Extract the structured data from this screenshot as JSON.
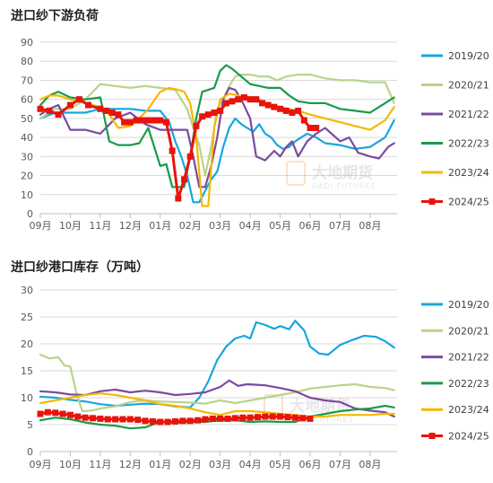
{
  "chart_data": [
    {
      "type": "line",
      "title": "进口纱下游负荷",
      "xlabel": "",
      "ylabel": "",
      "ylim": [
        0,
        90
      ],
      "yticks": [
        0,
        10,
        20,
        30,
        40,
        50,
        60,
        70,
        80,
        90
      ],
      "x_categories": [
        "09月",
        "10月",
        "11月",
        "12月",
        "01月",
        "02月",
        "03月",
        "04月",
        "05月",
        "06月",
        "07月",
        "08月"
      ],
      "xlim": [
        0,
        11.9
      ],
      "grid": "horizontal",
      "legend_position": "right",
      "series": [
        {
          "name": "2019/20",
          "color": "#17a6de",
          "marker": "none",
          "x": [
            0,
            0.5,
            1,
            1.5,
            2,
            2.5,
            3,
            3.5,
            4,
            4.3,
            4.5,
            4.7,
            4.9,
            5.1,
            5.3,
            5.5,
            5.7,
            5.9,
            6.1,
            6.3,
            6.5,
            6.7,
            6.9,
            7.1,
            7.3,
            7.5,
            7.7,
            7.9,
            8.1,
            8.3,
            8.5,
            8.7,
            8.9,
            9.2,
            9.5,
            10,
            10.5,
            11,
            11.5,
            11.8
          ],
          "y": [
            50,
            53,
            53,
            53,
            55,
            55,
            55,
            54,
            54,
            48,
            38,
            30,
            20,
            6,
            6,
            12,
            18,
            22,
            35,
            45,
            50,
            47,
            45,
            43,
            47,
            42,
            40,
            36,
            34,
            35,
            38,
            40,
            42,
            40,
            37,
            36,
            34,
            35,
            40,
            49
          ]
        },
        {
          "name": "2020/21",
          "color": "#b8d48a",
          "marker": "none",
          "x": [
            0,
            0.5,
            1,
            1.5,
            2,
            2.5,
            3,
            3.5,
            4,
            4.5,
            4.7,
            4.9,
            5.1,
            5.3,
            5.5,
            5.7,
            5.9,
            6.1,
            6.3,
            6.5,
            6.7,
            7,
            7.3,
            7.6,
            7.9,
            8.2,
            8.6,
            9,
            9.5,
            10,
            10.5,
            11,
            11.5,
            11.8
          ],
          "y": [
            50,
            55,
            55,
            60,
            68,
            67,
            66,
            67,
            66,
            65,
            60,
            55,
            45,
            36,
            20,
            35,
            55,
            60,
            67,
            72,
            73,
            73,
            72,
            72,
            70,
            72,
            73,
            73,
            71,
            70,
            70,
            69,
            69,
            58
          ]
        },
        {
          "name": "2021/22",
          "color": "#7b4aa0",
          "marker": "none",
          "x": [
            0,
            0.3,
            0.6,
            1,
            1.5,
            2,
            2.5,
            3,
            3.5,
            4,
            4.3,
            4.5,
            4.7,
            4.9,
            5.1,
            5.3,
            5.5,
            5.7,
            5.9,
            6.1,
            6.3,
            6.5,
            6.7,
            7,
            7.2,
            7.5,
            7.8,
            8,
            8.2,
            8.4,
            8.6,
            8.9,
            9.2,
            9.5,
            10,
            10.3,
            10.6,
            11,
            11.3,
            11.6,
            11.8
          ],
          "y": [
            52,
            55,
            57,
            44,
            44,
            42,
            50,
            53,
            47,
            44,
            44,
            44,
            44,
            44,
            30,
            14,
            14,
            25,
            40,
            60,
            66,
            65,
            60,
            50,
            30,
            28,
            33,
            30,
            35,
            38,
            30,
            38,
            42,
            45,
            38,
            40,
            32,
            30,
            29,
            35,
            37
          ]
        },
        {
          "name": "2022/23",
          "color": "#1a9a4a",
          "marker": "none",
          "x": [
            0,
            0.3,
            0.6,
            1,
            1.5,
            2,
            2.3,
            2.6,
            3,
            3.3,
            3.6,
            4,
            4.2,
            4.4,
            4.6,
            4.8,
            5,
            5.2,
            5.4,
            5.6,
            5.8,
            6,
            6.2,
            6.4,
            6.7,
            7,
            7.3,
            7.6,
            8,
            8.3,
            8.6,
            9,
            9.5,
            10,
            10.5,
            11,
            11.5,
            11.8
          ],
          "y": [
            57,
            62,
            64,
            61,
            60,
            61,
            38,
            36,
            36,
            37,
            45,
            25,
            26,
            14,
            14,
            14,
            30,
            50,
            64,
            65,
            66,
            75,
            78,
            76,
            72,
            68,
            67,
            66,
            66,
            62,
            59,
            58,
            58,
            55,
            54,
            53,
            58,
            61
          ]
        },
        {
          "name": "2023/24",
          "color": "#f5b800",
          "marker": "none",
          "x": [
            0,
            0.3,
            0.6,
            1,
            1.5,
            2,
            2.3,
            2.6,
            3,
            3.3,
            3.6,
            4,
            4.3,
            4.6,
            4.8,
            5,
            5.2,
            5.4,
            5.6,
            5.8,
            6,
            6.3,
            6.6,
            7,
            7.3,
            7.6,
            8,
            8.3,
            8.6,
            9,
            9.5,
            10,
            10.5,
            11,
            11.5,
            11.8
          ],
          "y": [
            60,
            62,
            62,
            60,
            58,
            56,
            52,
            45,
            46,
            50,
            55,
            64,
            66,
            65,
            64,
            58,
            40,
            4,
            4,
            45,
            60,
            63,
            62,
            61,
            60,
            57,
            56,
            55,
            54,
            52,
            50,
            48,
            46,
            44,
            49,
            56
          ]
        },
        {
          "name": "2024/25",
          "color": "#e8140c",
          "marker": "square",
          "x": [
            0,
            0.3,
            0.6,
            1,
            1.3,
            1.6,
            2,
            2.2,
            2.4,
            2.6,
            2.8,
            3,
            3.2,
            3.4,
            3.6,
            3.8,
            4,
            4.2,
            4.4,
            4.6,
            4.8,
            5,
            5.2,
            5.4,
            5.6,
            5.8,
            6,
            6.2,
            6.4,
            6.6,
            6.8,
            7,
            7.2,
            7.4,
            7.6,
            7.8,
            8,
            8.2,
            8.4,
            8.6,
            8.8,
            9,
            9.2
          ],
          "y": [
            55,
            54,
            52,
            57,
            60,
            57,
            55,
            54,
            53,
            52,
            48,
            48,
            49,
            49,
            49,
            49,
            49,
            48,
            33,
            8,
            18,
            30,
            46,
            51,
            52,
            53,
            54,
            58,
            59,
            60,
            61,
            60,
            60,
            58,
            57,
            56,
            55,
            54,
            53,
            54,
            49,
            45,
            45
          ]
        }
      ]
    },
    {
      "type": "line",
      "title": "进口纱港口库存（万吨）",
      "xlabel": "",
      "ylabel": "",
      "ylim": [
        0,
        30
      ],
      "yticks": [
        0,
        5,
        10,
        15,
        20,
        25,
        30
      ],
      "x_categories": [
        "09月",
        "10月",
        "11月",
        "12月",
        "01月",
        "02月",
        "03月",
        "04月",
        "05月",
        "06月",
        "07月",
        "08月"
      ],
      "xlim": [
        0,
        11.9
      ],
      "grid": "horizontal",
      "legend_position": "right",
      "series": [
        {
          "name": "2019/20",
          "color": "#17a6de",
          "marker": "none",
          "x": [
            0,
            0.5,
            1,
            1.5,
            2,
            2.5,
            3,
            3.5,
            4,
            4.5,
            5,
            5.3,
            5.6,
            5.9,
            6.2,
            6.5,
            6.8,
            7,
            7.2,
            7.5,
            7.8,
            8,
            8.3,
            8.5,
            8.8,
            9,
            9.3,
            9.6,
            10,
            10.4,
            10.8,
            11.2,
            11.5,
            11.8
          ],
          "y": [
            10.2,
            10,
            9.6,
            9.3,
            8.8,
            8.5,
            8.7,
            8.9,
            8.8,
            8.4,
            8.2,
            10,
            13,
            17,
            19.5,
            21,
            21.5,
            21,
            24,
            23.5,
            22.8,
            23.3,
            22.7,
            24.3,
            22.5,
            19.5,
            18.2,
            18,
            19.8,
            20.7,
            21.5,
            21.3,
            20.5,
            19.3
          ]
        },
        {
          "name": "2020/21",
          "color": "#b8d48a",
          "marker": "none",
          "x": [
            0,
            0.3,
            0.6,
            0.8,
            1,
            1.2,
            1.4,
            1.7,
            2,
            2.5,
            3,
            3.5,
            4,
            4.5,
            5,
            5.5,
            6,
            6.5,
            7,
            7.5,
            8,
            8.5,
            9,
            9.5,
            10,
            10.5,
            11,
            11.5,
            11.8
          ],
          "y": [
            18,
            17.3,
            17.5,
            16,
            15.8,
            11,
            7.5,
            7.6,
            8,
            8.4,
            9.2,
            9.5,
            9.3,
            9.2,
            9.1,
            8.9,
            9.5,
            9,
            9.5,
            10,
            10.5,
            11,
            11.7,
            12,
            12.3,
            12.5,
            12,
            11.8,
            11.4
          ]
        },
        {
          "name": "2021/22",
          "color": "#7b4aa0",
          "marker": "none",
          "x": [
            0,
            0.5,
            1,
            1.5,
            2,
            2.5,
            3,
            3.5,
            4,
            4.5,
            5,
            5.5,
            6,
            6.3,
            6.6,
            6.9,
            7.2,
            7.5,
            8,
            8.5,
            9,
            9.5,
            10,
            10.5,
            11,
            11.5,
            11.8
          ],
          "y": [
            11.2,
            11,
            10.6,
            10.5,
            11.2,
            11.5,
            11,
            11.3,
            11,
            10.5,
            10.7,
            11,
            12,
            13.2,
            12.2,
            12.5,
            12.4,
            12.3,
            11.8,
            11.2,
            10,
            9.5,
            9.2,
            8,
            7.6,
            7.3,
            6.5
          ]
        },
        {
          "name": "2022/23",
          "color": "#1a9a4a",
          "marker": "none",
          "x": [
            0,
            0.5,
            1,
            1.5,
            2,
            2.5,
            3,
            3.5,
            4,
            4.5,
            5,
            5.5,
            6,
            6.5,
            7,
            7.5,
            8,
            8.5,
            9,
            9.5,
            10,
            10.5,
            11,
            11.5,
            11.8
          ],
          "y": [
            5.8,
            6.3,
            6,
            5.4,
            5,
            4.8,
            4.3,
            4.5,
            5.5,
            5.3,
            5.5,
            5.5,
            5.8,
            5.8,
            5.5,
            5.6,
            5.5,
            5.5,
            6.5,
            7,
            7.5,
            7.8,
            8,
            8.5,
            8.2
          ]
        },
        {
          "name": "2023/24",
          "color": "#f5b800",
          "marker": "none",
          "x": [
            0,
            0.5,
            1,
            1.5,
            2,
            2.5,
            3,
            3.5,
            4,
            4.5,
            5,
            5.5,
            6,
            6.5,
            7,
            7.5,
            8,
            8.5,
            9,
            9.5,
            10,
            10.5,
            11,
            11.5,
            11.8
          ],
          "y": [
            9,
            9.5,
            10,
            10.5,
            10.8,
            10.5,
            10,
            9.5,
            8.8,
            8.5,
            8,
            7.3,
            6.8,
            7.5,
            7.5,
            7.3,
            7,
            6.8,
            6.5,
            6.5,
            6.8,
            6.8,
            6.8,
            7,
            7
          ]
        },
        {
          "name": "2024/25",
          "color": "#e8140c",
          "marker": "square",
          "x": [
            0,
            0.25,
            0.5,
            0.75,
            1,
            1.25,
            1.5,
            1.75,
            2,
            2.25,
            2.5,
            2.75,
            3,
            3.25,
            3.5,
            3.75,
            4,
            4.25,
            4.5,
            4.75,
            5,
            5.25,
            5.5,
            5.75,
            6,
            6.25,
            6.5,
            6.75,
            7,
            7.25,
            7.5,
            7.75,
            8,
            8.25,
            8.5,
            8.75,
            9
          ],
          "y": [
            7,
            7.3,
            7.2,
            7,
            6.8,
            6.5,
            6.3,
            6.2,
            6.1,
            6,
            6,
            6,
            6,
            5.9,
            5.7,
            5.6,
            5.5,
            5.5,
            5.6,
            5.7,
            5.7,
            5.8,
            6,
            6.1,
            6.1,
            6.1,
            6.2,
            6.3,
            6.3,
            6.4,
            6.5,
            6.5,
            6.5,
            6.4,
            6.3,
            6.2,
            6.1
          ]
        }
      ]
    }
  ],
  "watermark": {
    "brand_cn": "大地期货",
    "brand_en": "DADI FUTURES"
  }
}
